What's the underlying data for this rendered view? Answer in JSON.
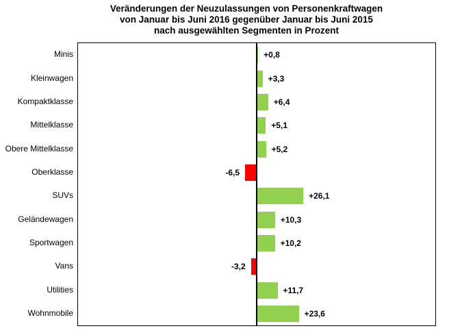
{
  "chart_data": {
    "type": "bar",
    "orientation": "horizontal",
    "title": "Veränderungen der Neuzulassungen von Personenkraftwagen von Januar bis Juni 2016 gegenüber Januar bis Juni 2015 nach ausgewählten Segmenten in Prozent",
    "title_lines": [
      "Veränderungen der Neuzulassungen von Personenkraftwagen",
      "von Januar bis Juni 2016 gegenüber Januar bis Juni 2015",
      "nach ausgewählten Segmenten in Prozent"
    ],
    "categories": [
      "Minis",
      "Kleinwagen",
      "Kompaktklasse",
      "Mittelklasse",
      "Obere Mittelklasse",
      "Oberklasse",
      "SUVs",
      "Geländewagen",
      "Sportwagen",
      "Vans",
      "Utilities",
      "Wohnmobile"
    ],
    "values": [
      0.8,
      3.3,
      6.4,
      5.1,
      5.2,
      -6.5,
      26.1,
      10.3,
      10.2,
      -3.2,
      11.7,
      23.6
    ],
    "value_labels": [
      "+0,8",
      "+3,3",
      "+6,4",
      "+5,1",
      "+5,2",
      "-6,5",
      "+26,1",
      "+10,3",
      "+10,2",
      "-3,2",
      "+11,7",
      "+23,6"
    ],
    "xlabel": "",
    "ylabel": "",
    "xlim": [
      -100,
      100
    ],
    "grid": false,
    "legend": false,
    "colors": {
      "positive": "#92D050",
      "negative": "#FF0000",
      "axis": "#000000",
      "text": "#000000",
      "background": "#FFFFFF"
    }
  }
}
